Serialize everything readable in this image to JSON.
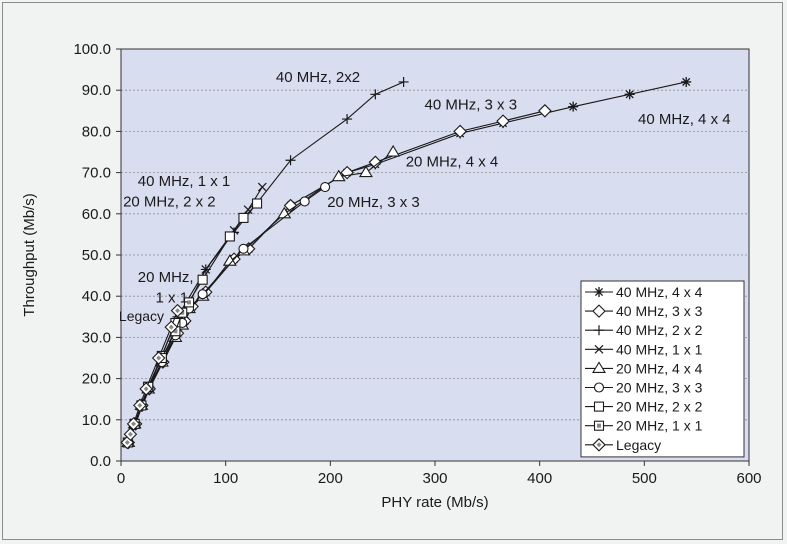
{
  "chart_data": {
    "type": "line",
    "xlabel": "PHY rate (Mb/s)",
    "ylabel": "Throughput (Mb/s)",
    "xlim": [
      0,
      600
    ],
    "ylim": [
      0,
      100
    ],
    "x_ticks": [
      0,
      100,
      200,
      300,
      400,
      500,
      600
    ],
    "y_ticks": [
      "0.0",
      "10.0",
      "20.0",
      "30.0",
      "40.0",
      "50.0",
      "60.0",
      "70.0",
      "80.0",
      "90.0",
      "100.0"
    ],
    "grid": "horizontal-dashed",
    "legend_position": "bottom-right",
    "plot_background": "#d8ddef",
    "series": [
      {
        "name": "40 MHz, 4 x 4",
        "marker": "asterisk",
        "x": [
          7,
          14,
          20,
          27,
          40,
          54,
          61,
          68,
          81,
          108,
          122,
          162,
          216,
          243,
          324,
          365,
          432,
          486,
          540
        ],
        "y": [
          4.5,
          9,
          13.5,
          17.5,
          24,
          31,
          34,
          37.5,
          41,
          49,
          51.5,
          62,
          70,
          72,
          79.5,
          82,
          86,
          89,
          92
        ]
      },
      {
        "name": "40 MHz, 3 x 3",
        "marker": "diamond",
        "x": [
          7,
          14,
          20,
          27,
          40,
          54,
          61,
          68,
          81,
          108,
          122,
          162,
          216,
          243,
          324,
          365,
          405
        ],
        "y": [
          4.5,
          9,
          13.5,
          17.5,
          24,
          31,
          34,
          37.5,
          41,
          49,
          51.5,
          62,
          70,
          72.5,
          80,
          82.5,
          85
        ]
      },
      {
        "name": "40 MHz, 2 x 2",
        "marker": "plus",
        "x": [
          27,
          54,
          81,
          108,
          162,
          216,
          243,
          270
        ],
        "y": [
          18,
          35,
          46.5,
          55.5,
          73,
          83,
          89,
          92
        ]
      },
      {
        "name": "40 MHz, 1 x 1",
        "marker": "cross",
        "x": [
          13.5,
          27,
          40.5,
          54,
          81,
          108,
          121.5,
          135
        ],
        "y": [
          9,
          17.5,
          25,
          32.5,
          46.5,
          56,
          61,
          66.5
        ]
      },
      {
        "name": "20 MHz, 4 x 4",
        "marker": "triangle",
        "x": [
          7,
          13,
          19.5,
          26,
          39,
          52,
          58.5,
          65,
          78,
          104,
          117,
          156,
          208,
          234,
          260
        ],
        "y": [
          4.5,
          9,
          13.5,
          17.5,
          24,
          30,
          33,
          37,
          40,
          48.5,
          51,
          60,
          69,
          70,
          75
        ]
      },
      {
        "name": "20 MHz, 3 x 3",
        "marker": "circle",
        "x": [
          7,
          13,
          19.5,
          26,
          39,
          52,
          58.5,
          65,
          78,
          117,
          175.5,
          195
        ],
        "y": [
          4.5,
          9,
          13.5,
          17.5,
          24,
          30.5,
          33.5,
          37,
          40.5,
          51.5,
          63,
          66.5
        ]
      },
      {
        "name": "20 MHz, 2 x 2",
        "marker": "square",
        "x": [
          13,
          26,
          39,
          52,
          78,
          104,
          117,
          130
        ],
        "y": [
          9,
          18,
          25.5,
          33.5,
          44,
          54.5,
          59,
          62.5
        ]
      },
      {
        "name": "20 MHz, 1 x 1",
        "marker": "square-dot",
        "x": [
          6.5,
          13,
          19.5,
          26,
          39,
          52,
          58.5,
          65
        ],
        "y": [
          4.5,
          9,
          13.5,
          18,
          25,
          31.5,
          36,
          38.5
        ]
      },
      {
        "name": "Legacy",
        "marker": "diamond-dot",
        "x": [
          6,
          9,
          12,
          18,
          24,
          36,
          48,
          54
        ],
        "y": [
          4.5,
          6.5,
          9,
          13.5,
          17.5,
          25,
          32.5,
          36.5
        ]
      }
    ],
    "annotations": [
      {
        "text": "40 MHz, 2x2",
        "x": 148,
        "y": 92
      },
      {
        "text": "40 MHz, 3 x 3",
        "x": 290,
        "y": 85.3
      },
      {
        "text": "40 MHz, 4 x 4",
        "x": 494,
        "y": 81.8
      },
      {
        "text": "20 MHz, 4 x 4",
        "x": 272,
        "y": 71.5
      },
      {
        "text": "20 MHz, 3 x 3",
        "x": 197,
        "y": 61.7
      },
      {
        "text": "40 MHz, 1 x 1",
        "x": 16,
        "y": 66.8
      },
      {
        "text": "20 MHz, 2 x 2",
        "x": 2,
        "y": 61.8
      },
      {
        "text": "20 MHz,",
        "x": 16,
        "y": 43.5
      },
      {
        "text": "1 x 1",
        "x": 33,
        "y": 38.5
      },
      {
        "text": "Legacy",
        "x": -2,
        "y": 34
      }
    ]
  }
}
